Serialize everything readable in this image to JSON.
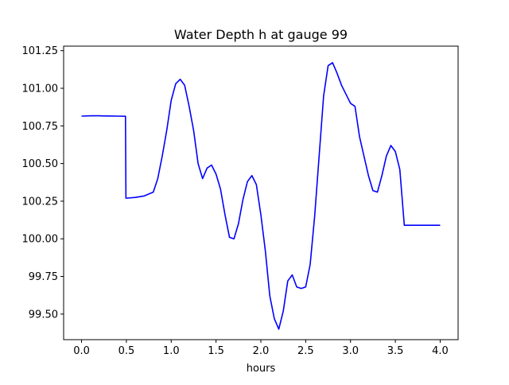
{
  "chart_data": {
    "type": "line",
    "title": "Water Depth h at gauge 99",
    "xlabel": "hours",
    "ylabel": "",
    "xlim": [
      -0.2,
      4.2
    ],
    "ylim": [
      99.33,
      101.28
    ],
    "xticks": [
      0.0,
      0.5,
      1.0,
      1.5,
      2.0,
      2.5,
      3.0,
      3.5,
      4.0
    ],
    "xtick_labels": [
      "0.0",
      "0.5",
      "1.0",
      "1.5",
      "2.0",
      "2.5",
      "3.0",
      "3.5",
      "4.0"
    ],
    "yticks": [
      99.5,
      99.75,
      100.0,
      100.25,
      100.5,
      100.75,
      101.0,
      101.25
    ],
    "ytick_labels": [
      "99.50",
      "99.75",
      "100.00",
      "100.25",
      "100.50",
      "100.75",
      "101.00",
      "101.25"
    ],
    "grid": false,
    "series": [
      {
        "color": "#0000ff",
        "x": [
          0.0,
          0.1,
          0.2,
          0.3,
          0.4,
          0.49,
          0.495,
          0.5,
          0.6,
          0.7,
          0.8,
          0.85,
          0.9,
          0.95,
          1.0,
          1.05,
          1.1,
          1.15,
          1.2,
          1.25,
          1.3,
          1.35,
          1.4,
          1.45,
          1.5,
          1.55,
          1.6,
          1.65,
          1.7,
          1.75,
          1.8,
          1.85,
          1.9,
          1.95,
          2.0,
          2.05,
          2.1,
          2.15,
          2.2,
          2.25,
          2.3,
          2.35,
          2.4,
          2.45,
          2.5,
          2.55,
          2.6,
          2.65,
          2.7,
          2.75,
          2.8,
          2.85,
          2.9,
          2.95,
          3.0,
          3.05,
          3.1,
          3.15,
          3.2,
          3.25,
          3.3,
          3.35,
          3.4,
          3.45,
          3.5,
          3.55,
          3.6,
          3.65,
          3.7,
          3.75,
          3.8,
          3.85,
          3.9,
          3.95,
          4.0
        ],
        "y": [
          100.815,
          100.817,
          100.817,
          100.816,
          100.815,
          100.814,
          100.27,
          100.27,
          100.275,
          100.285,
          100.31,
          100.4,
          100.55,
          100.72,
          100.92,
          101.03,
          101.06,
          101.02,
          100.88,
          100.72,
          100.5,
          100.4,
          100.47,
          100.49,
          100.43,
          100.33,
          100.16,
          100.01,
          100.0,
          100.1,
          100.26,
          100.38,
          100.42,
          100.36,
          100.16,
          99.92,
          99.62,
          99.47,
          99.4,
          99.52,
          99.72,
          99.76,
          99.68,
          99.67,
          99.68,
          99.83,
          100.15,
          100.55,
          100.95,
          101.15,
          101.17,
          101.1,
          101.02,
          100.96,
          100.9,
          100.88,
          100.68,
          100.55,
          100.42,
          100.32,
          100.31,
          100.42,
          100.55,
          100.62,
          100.58,
          100.46,
          100.09,
          100.09,
          100.09,
          100.09,
          100.09,
          100.09,
          100.09,
          100.09,
          100.09
        ]
      }
    ]
  }
}
